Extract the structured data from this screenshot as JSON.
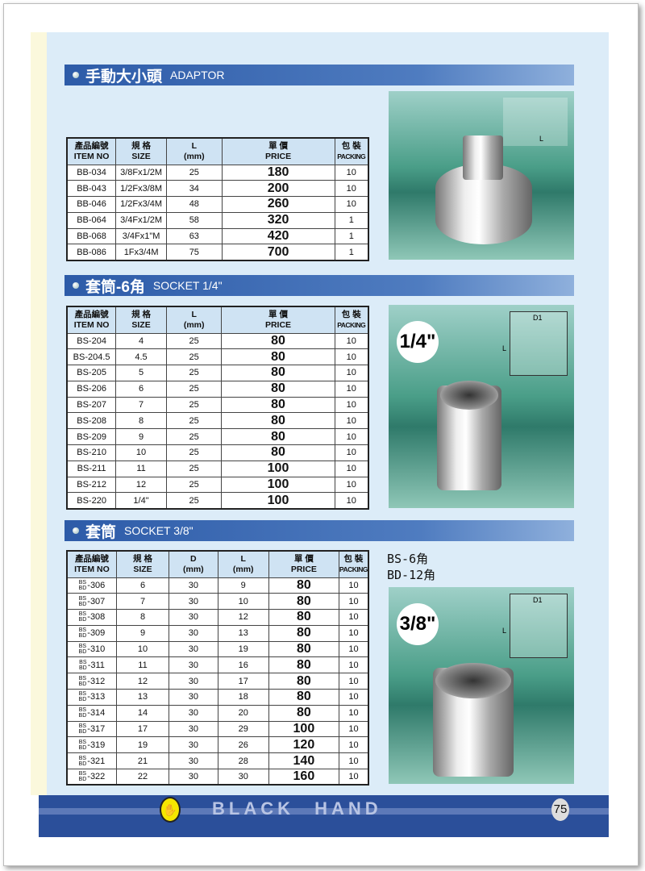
{
  "sections": [
    {
      "title_cn": "手動大小頭",
      "title_en": "ADAPTOR",
      "headers": [
        [
          "產品編號",
          "ITEM NO"
        ],
        [
          "規 格",
          "SIZE"
        ],
        [
          "L",
          "(mm)"
        ],
        [
          "單 價",
          "PRICE"
        ],
        [
          "包 裝",
          "PACKING"
        ]
      ],
      "rows": [
        [
          "BB-034",
          "3/8Fx1/2M",
          "25",
          "180",
          "10"
        ],
        [
          "BB-043",
          "1/2Fx3/8M",
          "34",
          "200",
          "10"
        ],
        [
          "BB-046",
          "1/2Fx3/4M",
          "48",
          "260",
          "10"
        ],
        [
          "BB-064",
          "3/4Fx1/2M",
          "58",
          "320",
          "1"
        ],
        [
          "BB-068",
          "3/4Fx1\"M",
          "63",
          "420",
          "1"
        ],
        [
          "BB-086",
          "1Fx3/4M",
          "75",
          "700",
          "1"
        ]
      ],
      "diagram_label": "L"
    },
    {
      "title_cn": "套筒-6角",
      "title_en": "SOCKET 1/4\"",
      "headers": [
        [
          "產品編號",
          "ITEM NO"
        ],
        [
          "規 格",
          "SIZE"
        ],
        [
          "L",
          "(mm)"
        ],
        [
          "單 價",
          "PRICE"
        ],
        [
          "包 裝",
          "PACKING"
        ]
      ],
      "rows": [
        [
          "BS-204",
          "4",
          "25",
          "80",
          "10"
        ],
        [
          "BS-204.5",
          "4.5",
          "25",
          "80",
          "10"
        ],
        [
          "BS-205",
          "5",
          "25",
          "80",
          "10"
        ],
        [
          "BS-206",
          "6",
          "25",
          "80",
          "10"
        ],
        [
          "BS-207",
          "7",
          "25",
          "80",
          "10"
        ],
        [
          "BS-208",
          "8",
          "25",
          "80",
          "10"
        ],
        [
          "BS-209",
          "9",
          "25",
          "80",
          "10"
        ],
        [
          "BS-210",
          "10",
          "25",
          "80",
          "10"
        ],
        [
          "BS-211",
          "11",
          "25",
          "100",
          "10"
        ],
        [
          "BS-212",
          "12",
          "25",
          "100",
          "10"
        ],
        [
          "BS-220",
          "1/4\"",
          "25",
          "100",
          "10"
        ]
      ],
      "fraction": "1/4\"",
      "diagram_labels": [
        "D1",
        "L"
      ]
    },
    {
      "title_cn": "套筒",
      "title_en": "SOCKET 3/8\"",
      "headers": [
        [
          "產品編號",
          "ITEM NO"
        ],
        [
          "規 格",
          "SIZE"
        ],
        [
          "D",
          "(mm)"
        ],
        [
          "L",
          "(mm)"
        ],
        [
          "單 價",
          "PRICE"
        ],
        [
          "包 裝",
          "PACKING"
        ]
      ],
      "prefix": [
        "BS",
        "BD"
      ],
      "rows": [
        [
          "-306",
          "6",
          "30",
          "9",
          "80",
          "10"
        ],
        [
          "-307",
          "7",
          "30",
          "10",
          "80",
          "10"
        ],
        [
          "-308",
          "8",
          "30",
          "12",
          "80",
          "10"
        ],
        [
          "-309",
          "9",
          "30",
          "13",
          "80",
          "10"
        ],
        [
          "-310",
          "10",
          "30",
          "19",
          "80",
          "10"
        ],
        [
          "-311",
          "11",
          "30",
          "16",
          "80",
          "10"
        ],
        [
          "-312",
          "12",
          "30",
          "17",
          "80",
          "10"
        ],
        [
          "-313",
          "13",
          "30",
          "18",
          "80",
          "10"
        ],
        [
          "-314",
          "14",
          "30",
          "20",
          "80",
          "10"
        ],
        [
          "-317",
          "17",
          "30",
          "29",
          "100",
          "10"
        ],
        [
          "-319",
          "19",
          "30",
          "26",
          "120",
          "10"
        ],
        [
          "-321",
          "21",
          "30",
          "28",
          "140",
          "10"
        ],
        [
          "-322",
          "22",
          "30",
          "30",
          "160",
          "10"
        ]
      ],
      "notes": [
        "BS-6角",
        "BD-12角"
      ],
      "fraction": "3/8\"",
      "diagram_labels": [
        "D1",
        "L"
      ]
    }
  ],
  "footer": {
    "brand": "BLACK HAND",
    "page": "75"
  }
}
